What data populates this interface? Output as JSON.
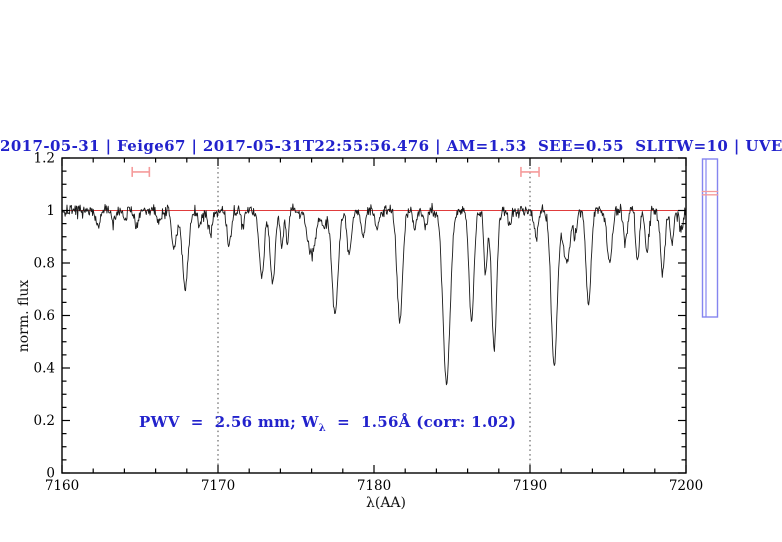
{
  "title": {
    "text": "2017-05-31 | Feige67 | 2017-05-31T22:55:56.476 | AM=1.53  SEE=0.55  SLITW=10 | UVE",
    "color": "#2222cc"
  },
  "annotation": {
    "part1": "PWV  =  2.56 mm; W",
    "subscript": "λ",
    "part2": "  =  1.56Å (corr: 1.02)",
    "color": "#2222cc"
  },
  "chart_data": {
    "type": "line",
    "xlabel": "λ(AA)",
    "ylabel": "norm. flux",
    "xlim": [
      7160,
      7200
    ],
    "ylim": [
      0,
      1.2
    ],
    "x_major_ticks": [
      7160,
      7170,
      7180,
      7190,
      7200
    ],
    "x_major_tick_labels": [
      "7160",
      "7170",
      "7180",
      "7190",
      "7200"
    ],
    "x_minor_step": 2,
    "y_major_ticks": [
      0,
      0.2,
      0.4,
      0.6,
      0.8,
      1,
      1.2
    ],
    "y_major_tick_labels": [
      "0",
      "0.2",
      "0.4",
      "0.6",
      "0.8",
      "1",
      "1.2"
    ],
    "y_minor_step": 0.05,
    "grid": "off",
    "dotted_gridlines_x": [
      7170,
      7190
    ],
    "reference_line": {
      "y": 1.0,
      "color": "#e03c3c"
    },
    "interval_markers": [
      {
        "x_center": 7165.05,
        "x_half_width": 0.55,
        "y": 1.147,
        "cap_half_height": 0.019,
        "color": "#f59b9b"
      },
      {
        "x_center": 7190.0,
        "x_half_width": 0.58,
        "y": 1.147,
        "cap_half_height": 0.019,
        "color": "#f59b9b"
      }
    ],
    "series": [
      {
        "name": "normalized spectrum",
        "color": "#1a1a1a",
        "continuum": 1.0,
        "noise_sigma": 0.012,
        "noise_seed": 20170531,
        "sample_step_AA": 0.04,
        "absorption_lines_center_depth_sigma": [
          [
            7162.3,
            0.065,
            0.14
          ],
          [
            7163.3,
            0.045,
            0.12
          ],
          [
            7164.05,
            0.04,
            0.1
          ],
          [
            7164.8,
            0.06,
            0.13
          ],
          [
            7166.2,
            0.05,
            0.12
          ],
          [
            7167.2,
            0.14,
            0.16
          ],
          [
            7167.9,
            0.29,
            0.19
          ],
          [
            7168.85,
            0.06,
            0.11
          ],
          [
            7169.5,
            0.08,
            0.13
          ],
          [
            7170.7,
            0.13,
            0.14
          ],
          [
            7171.6,
            0.06,
            0.11
          ],
          [
            7172.8,
            0.25,
            0.16
          ],
          [
            7173.5,
            0.28,
            0.16
          ],
          [
            7174.1,
            0.14,
            0.1
          ],
          [
            7174.45,
            0.12,
            0.09
          ],
          [
            7176.0,
            0.16,
            0.28
          ],
          [
            7176.8,
            0.06,
            0.14
          ],
          [
            7177.5,
            0.4,
            0.2
          ],
          [
            7178.4,
            0.16,
            0.14
          ],
          [
            7179.3,
            0.1,
            0.13
          ],
          [
            7180.2,
            0.07,
            0.12
          ],
          [
            7181.65,
            0.42,
            0.18
          ],
          [
            7182.6,
            0.06,
            0.11
          ],
          [
            7183.3,
            0.07,
            0.11
          ],
          [
            7184.65,
            0.655,
            0.23
          ],
          [
            7186.25,
            0.42,
            0.16
          ],
          [
            7187.15,
            0.24,
            0.11
          ],
          [
            7187.7,
            0.53,
            0.16
          ],
          [
            7188.7,
            0.05,
            0.1
          ],
          [
            7190.4,
            0.11,
            0.12
          ],
          [
            7191.55,
            0.59,
            0.2
          ],
          [
            7192.35,
            0.2,
            0.22
          ],
          [
            7192.9,
            0.1,
            0.11
          ],
          [
            7193.75,
            0.36,
            0.16
          ],
          [
            7195.1,
            0.2,
            0.16
          ],
          [
            7196.1,
            0.12,
            0.12
          ],
          [
            7196.9,
            0.19,
            0.12
          ],
          [
            7197.5,
            0.16,
            0.12
          ],
          [
            7198.5,
            0.24,
            0.14
          ],
          [
            7199.1,
            0.13,
            0.11
          ],
          [
            7199.7,
            0.08,
            0.11
          ]
        ]
      }
    ]
  },
  "slit_graphic": {
    "border_color": "#8585ef",
    "marker_line_color": "#f59b9b"
  }
}
